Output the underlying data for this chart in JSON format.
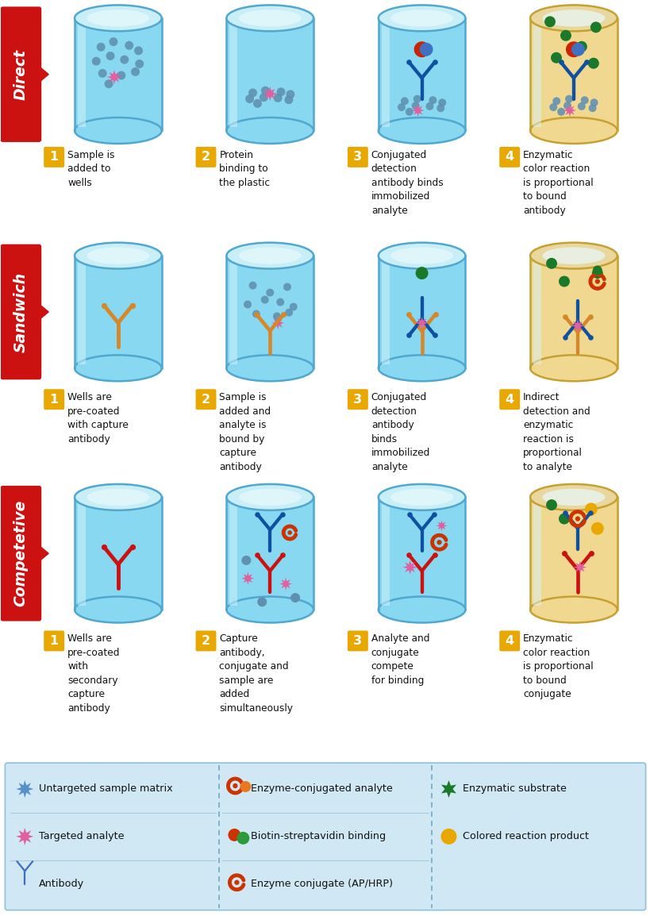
{
  "fig_width": 8.2,
  "fig_height": 11.54,
  "bg_color": "#ffffff",
  "tube_fill_blue": "#87d8f0",
  "tube_fill_yellow": "#f0d890",
  "tube_border": "#50a8d0",
  "tube_top_color": "#b8eaf8",
  "row_labels": [
    "Direct",
    "Sandwich",
    "Competetive"
  ],
  "row_label_bg": "#cc1111",
  "row_label_color": "#ffffff",
  "step_numbers": [
    "1",
    "2",
    "3",
    "4"
  ],
  "step_bg": "#e8a800",
  "step_text_color": "#ffffff",
  "direct_steps": [
    "Sample is\nadded to\nwells",
    "Protein\nbinding to\nthe plastic",
    "Conjugated\ndetection\nantibody binds\nimmobilized\nanalyte",
    "Enzymatic\ncolor reaction\nis proportional\nto bound\nantibody"
  ],
  "sandwich_steps": [
    "Wells are\npre-coated\nwith capture\nantibody",
    "Sample is\nadded and\nanalyte is\nbound by\ncapture\nantibody",
    "Conjugated\ndetection\nantibody\nbinds\nimmobilized\nanalyte",
    "Indirect\ndetection and\nenzymatic\nreaction is\nproportional\nto analyte"
  ],
  "competitive_steps": [
    "Wells are\npre-coated\nwith\nsecondary\ncapture\nantibody",
    "Capture\nantibody,\nconjugate and\nsample are\nadded\nsimultaneously",
    "Analyte and\nconjugate\ncompete\nfor binding",
    "Enzymatic\ncolor reaction\nis proportional\nto bound\nconjugate"
  ],
  "legend_bg": "#d0e8f4",
  "legend_items_col1": [
    [
      "#5590c8",
      "Untargeted sample matrix"
    ],
    [
      "#e060a0",
      "Targeted analyte"
    ],
    [
      "#4070c0",
      "Antibody"
    ]
  ],
  "legend_items_col2": [
    [
      "#cc3300",
      "Enzyme-conjugated analyte"
    ],
    [
      "#cc3300",
      "Biotin-streptavidin binding"
    ],
    [
      "#cc3300",
      "Enzyme conjugate (AP/HRP)"
    ]
  ],
  "legend_items_col3": [
    [
      "#1a7a2a",
      "Enzymatic substrate"
    ],
    [
      "#e8a800",
      "Colored reaction product"
    ]
  ],
  "dot_color_blue": "#6090b0",
  "dot_color_pink": "#e060a0",
  "dot_color_green": "#1a7a2a",
  "dot_color_yellow": "#e8a800",
  "antibody_color_blue": "#1050a0",
  "antibody_color_orange": "#d4882a",
  "antibody_color_red": "#cc1111",
  "enzyme_color": "#cc3300"
}
